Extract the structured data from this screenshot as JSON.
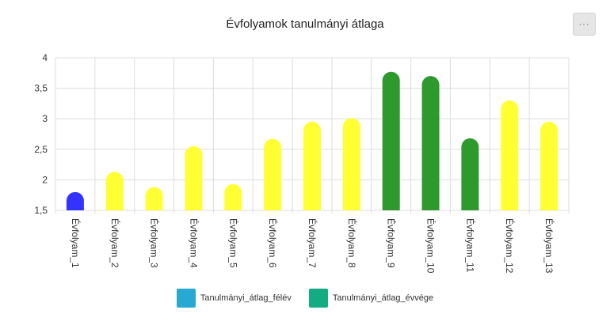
{
  "title": "Évfolyamok tanulmányi átlaga",
  "menu_label": "···",
  "chart_data": {
    "type": "bar",
    "title": "Évfolyamok tanulmányi átlaga",
    "categories": [
      "Évfolyam_1",
      "Évfolyam_2",
      "Évfolyam_3",
      "Évfolyam_4",
      "Évfolyam_5",
      "Évfolyam_6",
      "Évfolyam_7",
      "Évfolyam_8",
      "Évfolyam_9",
      "Évfolyam_10",
      "Évfolyam_11",
      "Évfolyam_12",
      "Évfolyam_13"
    ],
    "values": [
      1.8,
      2.13,
      1.88,
      2.55,
      1.93,
      2.67,
      2.95,
      3.01,
      3.77,
      3.7,
      2.68,
      3.3,
      2.95
    ],
    "bar_colors": [
      "#3333ff",
      "#ffff33",
      "#ffff33",
      "#ffff33",
      "#ffff33",
      "#ffff33",
      "#ffff33",
      "#ffff33",
      "#2e9a2e",
      "#2e9a2e",
      "#2e9a2e",
      "#ffff33",
      "#ffff33"
    ],
    "ylim": [
      1.5,
      4
    ],
    "yticks": [
      1.5,
      2,
      2.5,
      3,
      3.5,
      4
    ],
    "ytick_labels": [
      "1,5",
      "2",
      "2,5",
      "3",
      "3,5",
      "4"
    ],
    "grid": true,
    "xlabel": "",
    "ylabel": "",
    "legend": {
      "placement": "bottom",
      "items": [
        {
          "name": "Tanulmányi_átlag_félév",
          "color": "#27a9d1"
        },
        {
          "name": "Tanulmányi_átlag_évvége",
          "color": "#13ab82"
        }
      ]
    }
  }
}
